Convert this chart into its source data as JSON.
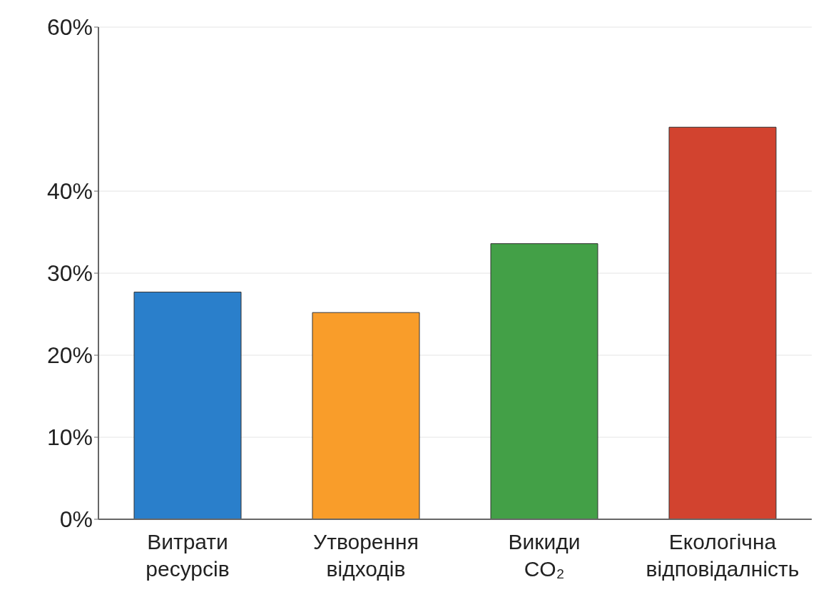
{
  "chart_data": {
    "type": "bar",
    "categories": [
      "Витрати\nресурсів",
      "Утворення\nвідходів",
      "Викиди\nCO₂",
      "Екологічна\nвідповідалність"
    ],
    "values": [
      27.7,
      25.2,
      33.6,
      47.8
    ],
    "colors": [
      "#2a7fcb",
      "#f99d2a",
      "#43a047",
      "#d2432f"
    ],
    "ylim": [
      0,
      60
    ],
    "yticks": [
      {
        "value": 0,
        "label": "0%"
      },
      {
        "value": 10,
        "label": "10%"
      },
      {
        "value": 20,
        "label": "20%"
      },
      {
        "value": 30,
        "label": "30%"
      },
      {
        "value": 40,
        "label": "40%"
      },
      {
        "value": 60,
        "label": "60%"
      }
    ],
    "grid": "y"
  }
}
